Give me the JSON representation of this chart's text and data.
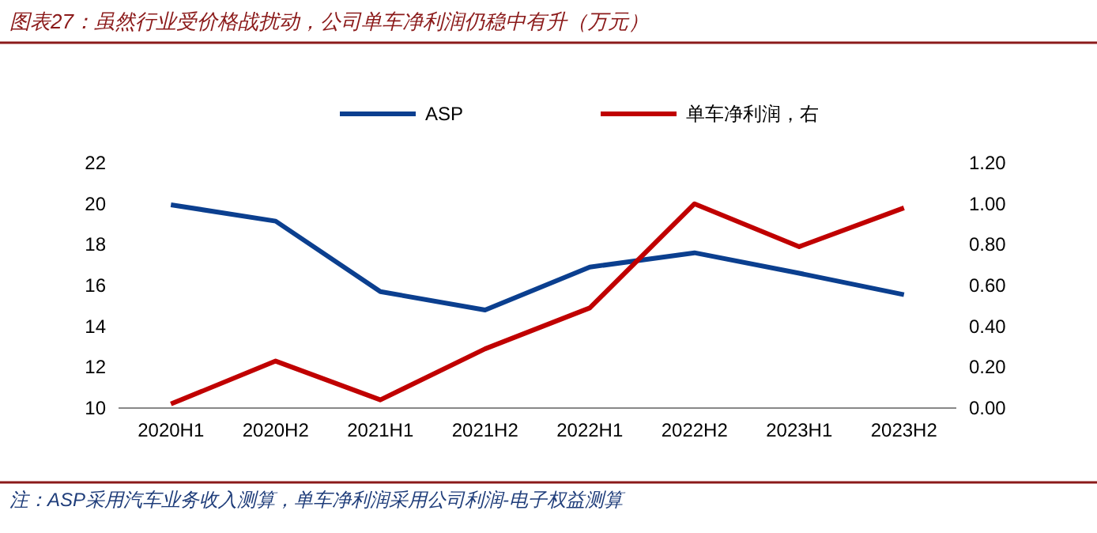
{
  "chart_data": {
    "type": "line",
    "title": "图表27：虽然行业受价格战扰动，公司单车净利润仍稳中有升（万元）",
    "annotations": [
      "注：ASP采用汽车业务收入测算，单车净利润采用公司利润-电子权益测算"
    ],
    "categories": [
      "2020H1",
      "2020H2",
      "2021H1",
      "2021H2",
      "2022H1",
      "2022H2",
      "2023H1",
      "2023H2"
    ],
    "series": [
      {
        "name": "ASP",
        "color": "#0b3f8f",
        "values": [
          19.95,
          19.15,
          15.7,
          14.8,
          16.9,
          17.6,
          16.6,
          15.55
        ]
      },
      {
        "name": "单车净利润，右",
        "color": "#c00000",
        "axis": "y2",
        "values": [
          0.02,
          0.23,
          0.04,
          0.29,
          0.49,
          1.0,
          0.79,
          0.98
        ]
      }
    ],
    "ylim": [
      10,
      22
    ],
    "yticks": [
      10,
      12,
      14,
      16,
      18,
      20,
      22
    ],
    "y2lim": [
      0,
      1.2
    ],
    "y2ticks": [
      {
        "value": 0,
        "label": "0.00"
      },
      {
        "value": 0.2,
        "label": "0.20"
      },
      {
        "value": 0.4,
        "label": "0.40"
      },
      {
        "value": 0.6,
        "label": "0.60"
      },
      {
        "value": 0.8,
        "label": "0.80"
      },
      {
        "value": 1.0,
        "label": "1.00"
      },
      {
        "value": 1.2,
        "label": "1.20"
      }
    ],
    "legend": "top",
    "grid": false,
    "line_style": "solid",
    "marker": "none"
  }
}
